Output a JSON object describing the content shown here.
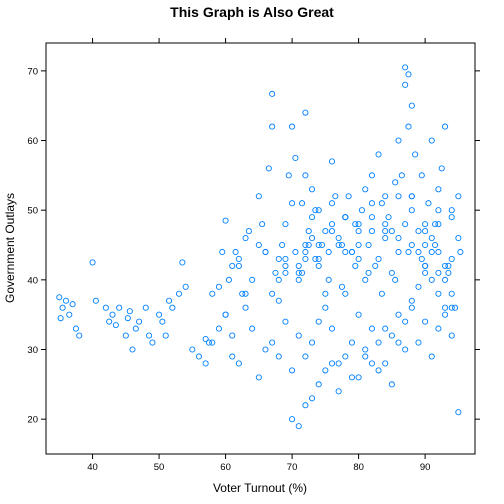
{
  "chart_data": {
    "type": "scatter",
    "title": "This Graph is Also Great",
    "xlabel": "Voter Turnout (%)",
    "ylabel": "Government Outlays",
    "xlim": [
      33,
      97.5
    ],
    "ylim": [
      15,
      74
    ],
    "xticks": [
      40,
      50,
      60,
      70,
      80,
      90
    ],
    "yticks": [
      20,
      30,
      40,
      50,
      60,
      70
    ],
    "marker": "open-circle",
    "color": "#0080ff",
    "grid": false,
    "legend": "none",
    "series": [
      {
        "x": [
          35,
          35.2,
          35.5,
          36,
          36.5,
          37,
          37.5,
          38,
          40,
          40.5,
          42,
          42.5,
          43,
          43.5,
          44,
          45,
          45.3,
          45.6,
          46,
          46.5,
          47,
          48,
          48.5,
          49,
          50,
          50.5,
          51,
          51.5,
          52,
          53,
          53.5,
          54,
          57,
          57.5,
          58,
          59,
          59.5,
          60,
          60.5,
          61,
          61.5,
          62,
          62.5,
          63,
          63.5,
          64,
          65,
          65.5,
          66,
          66.5,
          67,
          67.5,
          68,
          68.5,
          69,
          69.5,
          70,
          70.5,
          71,
          71.5,
          72,
          72.5,
          73,
          73.5,
          74,
          74.5,
          75,
          75.5,
          76,
          76.5,
          77,
          77.5,
          78,
          78.5,
          79,
          79.5,
          80,
          80.5,
          81,
          81.5,
          82,
          82.5,
          83,
          83.5,
          84,
          84.5,
          85,
          85.5,
          86,
          86.5,
          87,
          87.5,
          88,
          88.5,
          89,
          89.5,
          90,
          90.5,
          91,
          91.5,
          92,
          92.5,
          93,
          93.5,
          94,
          94.5,
          95,
          95.3,
          60,
          61,
          62,
          63,
          65,
          66,
          67,
          68,
          69,
          70,
          71,
          72,
          73,
          74,
          75,
          76,
          77,
          78,
          79,
          80,
          81,
          82,
          83,
          84,
          85,
          86,
          87,
          88,
          89,
          90,
          91,
          92,
          93,
          94,
          95,
          70,
          71,
          72,
          73,
          74,
          75,
          76,
          77,
          78,
          79,
          80,
          81,
          82,
          83,
          84,
          85,
          86,
          87,
          88,
          89,
          90,
          91,
          92,
          93,
          94,
          70.5,
          71.5,
          72.5,
          73.5,
          75.5,
          77.5,
          79.5,
          81.5,
          83.5,
          85.5,
          87.5,
          89.5,
          91.5,
          93.5,
          68,
          69,
          71,
          72,
          73,
          74,
          76,
          78,
          80,
          82,
          84,
          86,
          88,
          90,
          92,
          94,
          70,
          72,
          74,
          76,
          78,
          80,
          82,
          84,
          86,
          88,
          90,
          92,
          94,
          95,
          72,
          73,
          74,
          75,
          76,
          77,
          78,
          79,
          80,
          81,
          82,
          83,
          84,
          85,
          86,
          87,
          88,
          89,
          90,
          91,
          92,
          93,
          87,
          87.5,
          88,
          67,
          72,
          71,
          69,
          90,
          91,
          92,
          93,
          94,
          62,
          63,
          64,
          65,
          66,
          67,
          68,
          69,
          55,
          56,
          57,
          58,
          59,
          60,
          61
        ],
        "y": [
          37.5,
          34.5,
          36,
          37,
          35,
          36.5,
          33,
          32,
          42.5,
          37,
          36,
          34,
          35,
          33.5,
          36,
          32,
          34.5,
          35.5,
          30,
          33,
          34,
          36,
          32,
          31,
          35,
          34,
          32,
          37,
          36,
          38,
          42.5,
          39,
          31.5,
          31,
          38,
          39,
          44,
          48.5,
          40,
          42,
          44,
          43,
          38,
          46,
          47,
          33,
          52,
          48,
          44,
          56,
          66.7,
          41,
          43,
          45,
          48,
          55,
          62,
          57.5,
          40,
          51,
          64,
          47,
          53,
          50,
          43,
          45,
          38,
          44,
          48,
          52,
          46,
          45,
          49,
          52,
          44,
          48,
          47,
          50,
          53,
          45,
          55,
          42,
          58,
          51,
          52,
          49,
          47,
          54,
          60,
          55,
          68,
          62,
          52,
          58,
          44,
          55,
          42,
          51,
          60,
          48,
          50,
          56,
          62,
          41,
          43,
          36,
          52,
          44,
          35,
          32,
          28,
          36,
          26,
          30,
          31,
          29,
          34,
          27,
          32,
          29,
          31,
          34,
          36,
          33,
          28,
          38,
          26,
          35,
          29,
          33,
          31,
          28,
          32,
          35,
          30,
          37,
          31,
          34,
          29,
          33,
          36,
          32,
          21,
          20,
          19,
          22,
          23,
          25,
          27,
          28,
          24,
          29,
          31,
          26,
          30,
          28,
          27,
          33,
          25,
          31,
          34,
          36,
          39,
          42,
          46,
          48,
          40,
          38,
          44,
          41,
          45,
          43,
          40,
          39,
          42,
          41,
          38,
          40,
          44,
          43,
          45,
          42,
          37,
          41,
          41,
          44,
          46,
          50,
          47,
          49,
          45,
          51,
          48,
          52,
          50,
          47,
          53,
          49,
          51,
          55,
          45,
          57,
          44,
          43,
          49,
          47,
          46,
          45,
          48,
          44,
          50,
          46,
          43,
          49,
          42,
          47,
          51,
          45,
          49,
          44,
          48,
          40,
          47,
          43,
          46,
          41,
          44,
          48,
          52,
          47,
          45,
          44,
          41,
          42,
          70.5,
          69.5,
          65,
          62,
          45,
          42,
          43,
          41,
          40,
          38,
          35,
          36,
          42,
          38,
          40,
          45,
          44,
          38,
          40,
          42,
          30,
          29,
          28,
          31,
          33,
          35,
          29
        ]
      }
    ]
  }
}
